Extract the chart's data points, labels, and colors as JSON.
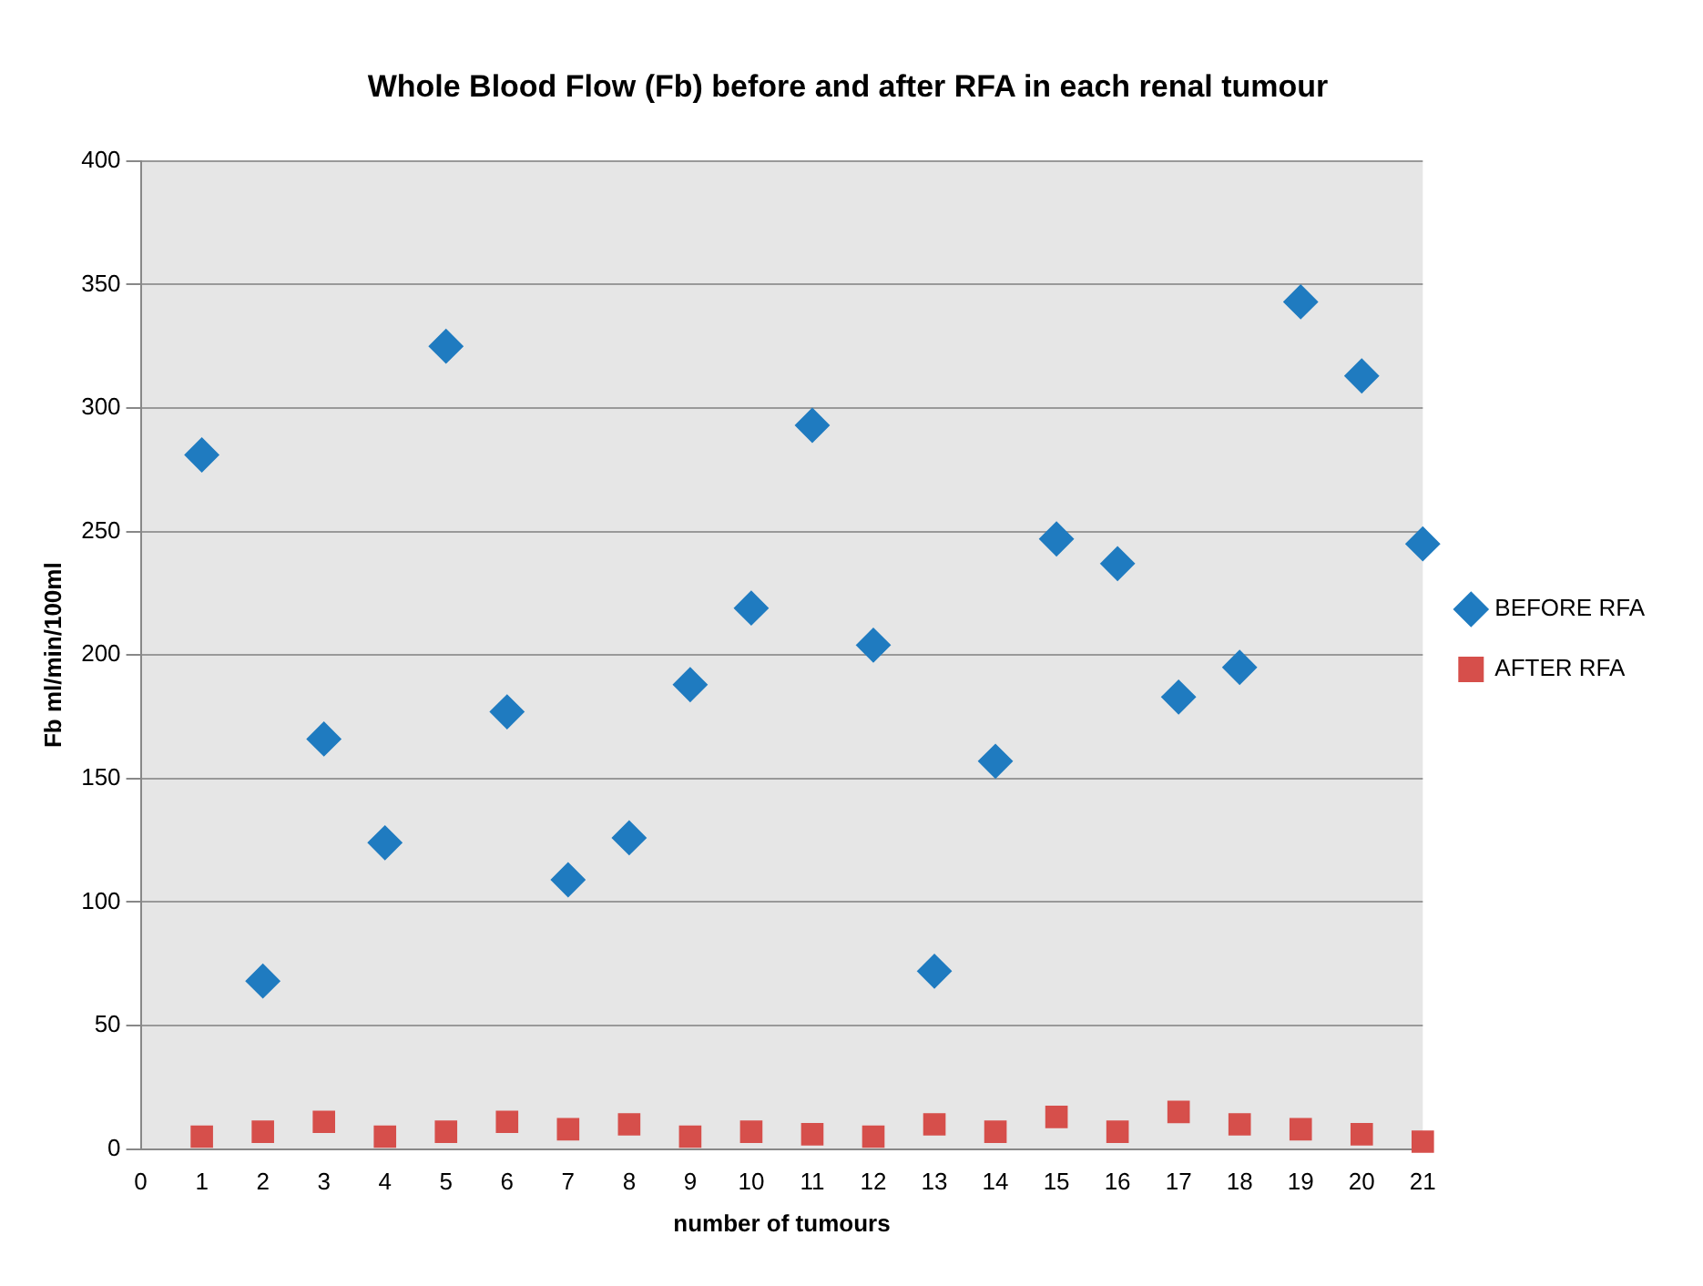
{
  "chart_data": {
    "type": "scatter",
    "title": "Whole Blood Flow (Fb) before and after RFA in each renal tumour",
    "xlabel": "number of tumours",
    "ylabel": "Fb ml/min/100ml",
    "x": [
      1,
      2,
      3,
      4,
      5,
      6,
      7,
      8,
      9,
      10,
      11,
      12,
      13,
      14,
      15,
      16,
      17,
      18,
      19,
      20,
      21
    ],
    "series": [
      {
        "name": "BEFORE RFA",
        "color": "#1f7bc0",
        "marker": "diamond",
        "values": [
          281,
          68,
          166,
          124,
          325,
          177,
          109,
          126,
          188,
          219,
          293,
          204,
          72,
          157,
          247,
          237,
          183,
          195,
          343,
          313,
          245
        ]
      },
      {
        "name": "AFTER RFA",
        "color": "#d64f4b",
        "marker": "square",
        "values": [
          5,
          7,
          11,
          5,
          7,
          11,
          8,
          10,
          5,
          7,
          6,
          5,
          10,
          7,
          13,
          7,
          15,
          10,
          8,
          6,
          3
        ]
      }
    ],
    "xlim": [
      0,
      21
    ],
    "xticks": [
      0,
      1,
      2,
      3,
      4,
      5,
      6,
      7,
      8,
      9,
      10,
      11,
      12,
      13,
      14,
      15,
      16,
      17,
      18,
      19,
      20,
      21
    ],
    "ylim": [
      0,
      400
    ],
    "yticks": [
      0,
      50,
      100,
      150,
      200,
      250,
      300,
      350,
      400
    ],
    "grid": "y",
    "legend": "right"
  }
}
